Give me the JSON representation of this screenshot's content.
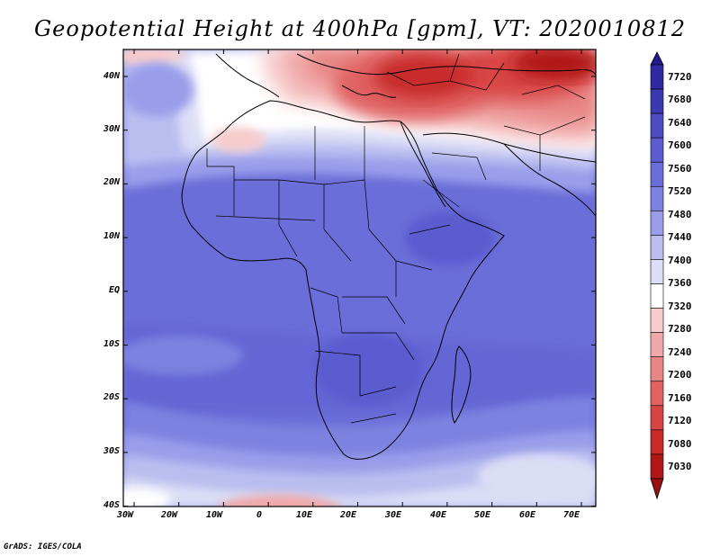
{
  "title": "Geopotential Height at 400hPa [gpm], VT: 2020010812",
  "credit": "GrADS: IGES/COLA",
  "map": {
    "lat_labels": [
      "40N",
      "30N",
      "20N",
      "10N",
      "EQ",
      "10S",
      "20S",
      "30S",
      "40S"
    ],
    "lon_labels": [
      "30W",
      "20W",
      "10W",
      "0",
      "10E",
      "20E",
      "30E",
      "40E",
      "50E",
      "60E",
      "70E"
    ]
  },
  "colorbar": {
    "labels": [
      "7720",
      "7680",
      "7640",
      "7600",
      "7560",
      "7520",
      "7480",
      "7440",
      "7400",
      "7360",
      "7320",
      "7280",
      "7240",
      "7200",
      "7160",
      "7120",
      "7080",
      "7030"
    ],
    "colors": [
      "#241a8c",
      "#2e2aa0",
      "#3a3ab0",
      "#4a4cc0",
      "#5a5cd0",
      "#6a6ed8",
      "#7c82e0",
      "#9a9eea",
      "#babeef",
      "#dcdef6",
      "#ffffff",
      "#f7cccc",
      "#f0a8a8",
      "#e88585",
      "#e06262",
      "#d84545",
      "#c82a2a",
      "#b01818",
      "#9a1010"
    ]
  }
}
